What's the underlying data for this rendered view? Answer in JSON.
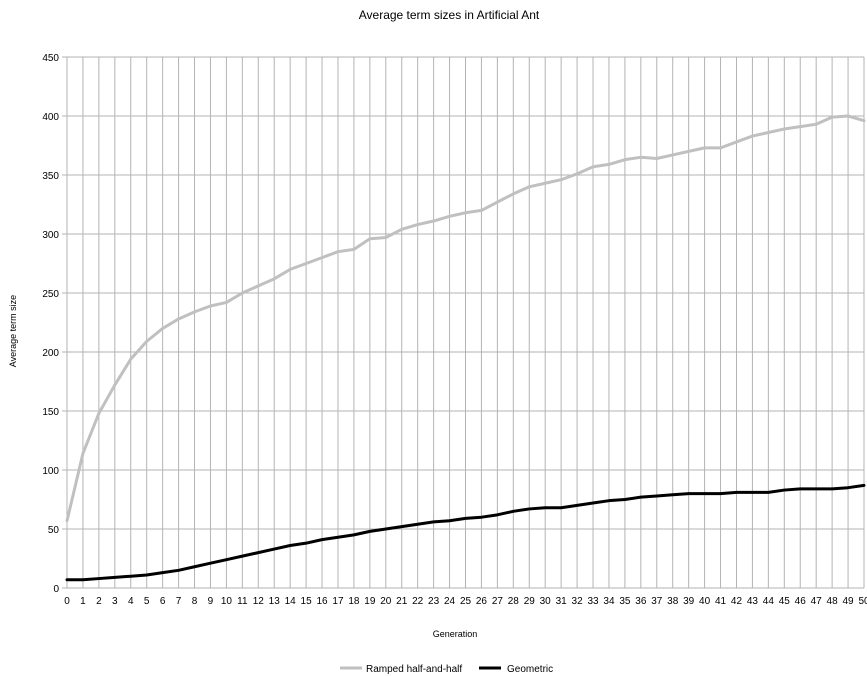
{
  "chart_data": {
    "type": "line",
    "title": "Average term sizes in Artificial Ant",
    "xlabel": "Generation",
    "ylabel": "Average term size",
    "ylim": [
      0,
      450
    ],
    "yticks": [
      0,
      50,
      100,
      150,
      200,
      250,
      300,
      350,
      400,
      450
    ],
    "x": [
      0,
      1,
      2,
      3,
      4,
      5,
      6,
      7,
      8,
      9,
      10,
      11,
      12,
      13,
      14,
      15,
      16,
      17,
      18,
      19,
      20,
      21,
      22,
      23,
      24,
      25,
      26,
      27,
      28,
      29,
      30,
      31,
      32,
      33,
      34,
      35,
      36,
      37,
      38,
      39,
      40,
      41,
      42,
      43,
      44,
      45,
      46,
      47,
      48,
      49,
      50
    ],
    "grid": true,
    "legend_position": "bottom",
    "series": [
      {
        "name": "Ramped half-and-half",
        "color": "#c0c0c0",
        "values": [
          57,
          114,
          148,
          172,
          194,
          209,
          220,
          228,
          234,
          239,
          242,
          250,
          256,
          262,
          270,
          275,
          280,
          285,
          287,
          296,
          297,
          304,
          308,
          311,
          315,
          318,
          320,
          327,
          334,
          340,
          343,
          346,
          351,
          357,
          359,
          363,
          365,
          364,
          367,
          370,
          373,
          373,
          378,
          383,
          386,
          389,
          391,
          393,
          399,
          400,
          396
        ]
      },
      {
        "name": "Geometric",
        "color": "#000000",
        "values": [
          7,
          7,
          8,
          9,
          10,
          11,
          13,
          15,
          18,
          21,
          24,
          27,
          30,
          33,
          36,
          38,
          41,
          43,
          45,
          48,
          50,
          52,
          54,
          56,
          57,
          59,
          60,
          62,
          65,
          67,
          68,
          68,
          70,
          72,
          74,
          75,
          77,
          78,
          79,
          80,
          80,
          80,
          81,
          81,
          81,
          83,
          84,
          84,
          84,
          85,
          87
        ]
      }
    ]
  }
}
